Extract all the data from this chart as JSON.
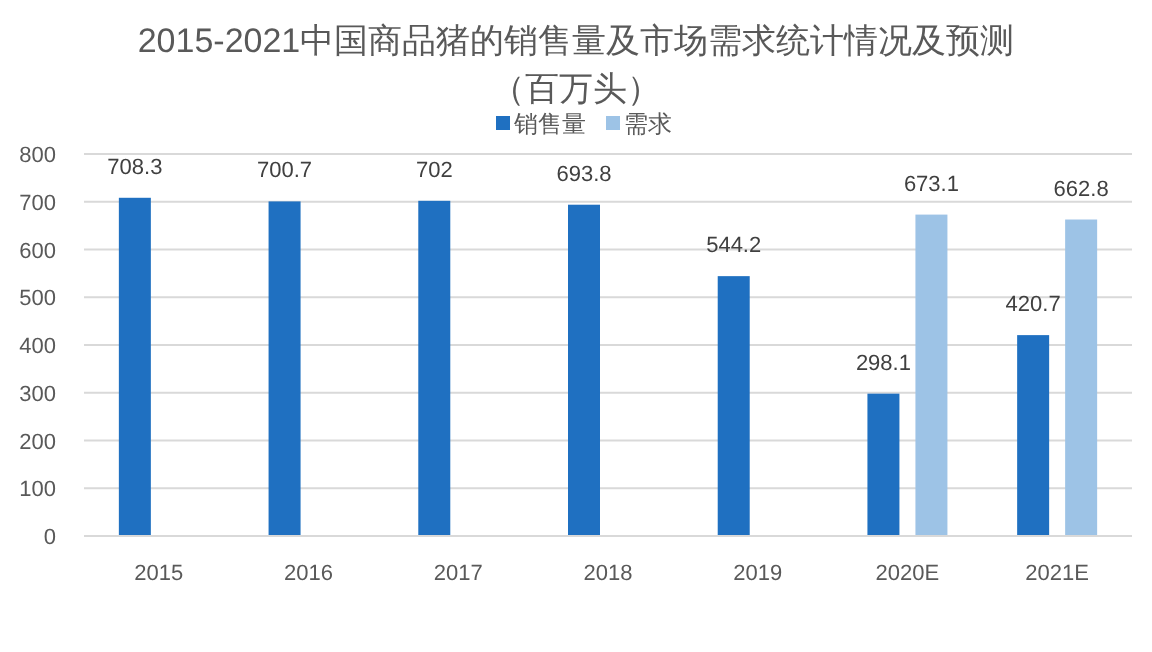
{
  "chart_data": {
    "type": "bar",
    "title": "2015-2021中国商品猪的销售量及市场需求统计情况及预测",
    "subtitle": "（百万头）",
    "categories": [
      "2015",
      "2016",
      "2017",
      "2018",
      "2019",
      "2020E",
      "2021E"
    ],
    "series": [
      {
        "name": "销售量",
        "color": "#1f70c1",
        "values": [
          708.3,
          700.7,
          702,
          693.8,
          544.2,
          298.1,
          420.7
        ]
      },
      {
        "name": "需求",
        "color": "#9dc3e6",
        "values": [
          null,
          null,
          null,
          null,
          null,
          673.1,
          662.8
        ]
      }
    ],
    "ylim": [
      0,
      800
    ],
    "yticks": [
      0,
      100,
      200,
      300,
      400,
      500,
      600,
      700,
      800
    ],
    "grid": "y",
    "legend": "top",
    "data_labels": true
  }
}
